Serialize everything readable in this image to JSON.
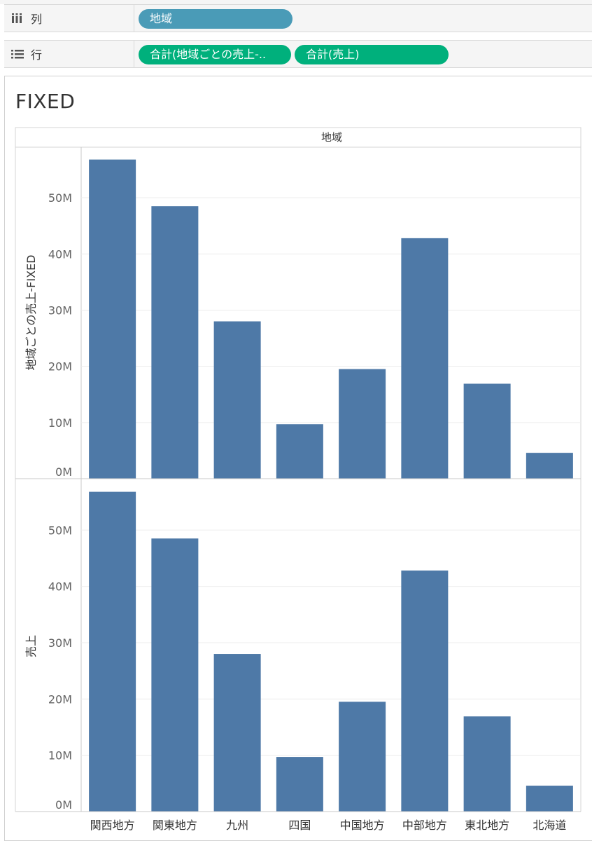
{
  "shelves": {
    "columns": {
      "label": "列",
      "pills": [
        "地域"
      ]
    },
    "rows": {
      "label": "行",
      "pills": [
        "合計(地域ごとの売上-..",
        "合計(売上)"
      ]
    }
  },
  "colors": {
    "column_pill": "#4a9bb7",
    "row_pill": "#00b07c",
    "bar": "#4e79a7"
  },
  "sheet_title": "FIXED",
  "chart_data": {
    "type": "bar",
    "column_header": "地域",
    "categories": [
      "関西地方",
      "関東地方",
      "九州",
      "四国",
      "中国地方",
      "中部地方",
      "東北地方",
      "北海道"
    ],
    "series": [
      {
        "name": "地域ごとの売上-FIXED",
        "values": [
          56.8,
          48.5,
          28.0,
          9.7,
          19.5,
          42.8,
          16.9,
          4.6
        ]
      },
      {
        "name": "売上",
        "values": [
          56.8,
          48.5,
          28.0,
          9.7,
          19.5,
          42.8,
          16.9,
          4.6
        ]
      }
    ],
    "ylabels": [
      "地域ごとの売上-FIXED",
      "売上"
    ],
    "yticks": [
      "0M",
      "10M",
      "20M",
      "30M",
      "40M",
      "50M"
    ],
    "ylim": [
      0,
      59
    ],
    "unit": "M",
    "grid": true
  }
}
